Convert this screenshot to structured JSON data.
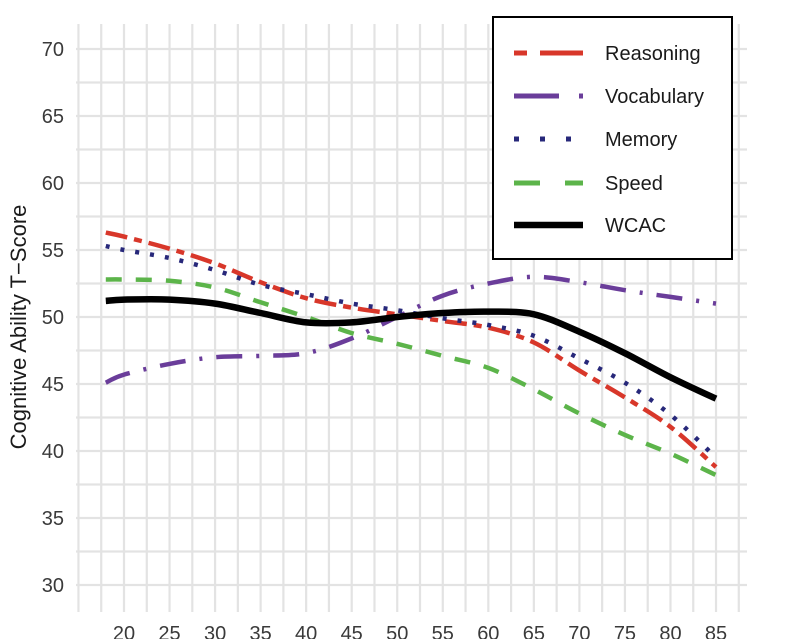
{
  "chart_data": {
    "type": "line",
    "title": "",
    "xlabel": "",
    "ylabel": "Cognitive Ability T−Score",
    "xlim": [
      15,
      87.5
    ],
    "ylim": [
      28,
      72
    ],
    "x_ticks": [
      20,
      25,
      30,
      35,
      40,
      45,
      50,
      55,
      60,
      65,
      70,
      75,
      80,
      85
    ],
    "x_tick_labels": [
      "20",
      "25",
      "30",
      "35",
      "40",
      "45",
      "50",
      "55",
      "60",
      "65",
      "70",
      "75",
      "80",
      "85"
    ],
    "y_ticks": [
      30,
      35,
      40,
      45,
      50,
      55,
      60,
      65,
      70
    ],
    "y_tick_labels": [
      "30",
      "35",
      "40",
      "45",
      "50",
      "55",
      "60",
      "65",
      "70"
    ],
    "grid": true,
    "legend_position": "top-right",
    "x": [
      18,
      20,
      25,
      30,
      35,
      40,
      45,
      50,
      55,
      60,
      65,
      70,
      75,
      80,
      85
    ],
    "series": [
      {
        "name": "Reasoning",
        "color": "#d8372a",
        "style": "longdash-short",
        "values": [
          56.3,
          56.0,
          55.1,
          54.0,
          52.6,
          51.4,
          50.7,
          50.2,
          49.7,
          49.2,
          48.1,
          46.0,
          44.0,
          41.8,
          38.8
        ]
      },
      {
        "name": "Vocabulary",
        "color": "#6a3d9a",
        "style": "longdash-dot",
        "values": [
          45.1,
          45.7,
          46.5,
          47.0,
          47.1,
          47.3,
          48.4,
          50.0,
          51.6,
          52.5,
          53.0,
          52.6,
          52.0,
          51.5,
          51.0
        ]
      },
      {
        "name": "Memory",
        "color": "#27287a",
        "style": "dotted",
        "values": [
          55.3,
          55.0,
          54.4,
          53.5,
          52.4,
          51.7,
          51.0,
          50.5,
          49.9,
          49.4,
          48.6,
          46.9,
          45.1,
          42.7,
          39.5
        ]
      },
      {
        "name": "Speed",
        "color": "#5cb44a",
        "style": "dashed",
        "values": [
          52.8,
          52.8,
          52.7,
          52.2,
          51.1,
          50.0,
          48.8,
          48.0,
          47.1,
          46.2,
          44.6,
          42.8,
          41.2,
          39.8,
          38.2
        ]
      },
      {
        "name": "WCAC",
        "color": "#000000",
        "style": "solid",
        "values": [
          51.2,
          51.3,
          51.3,
          51.0,
          50.3,
          49.6,
          49.6,
          50.0,
          50.3,
          50.4,
          50.2,
          48.9,
          47.3,
          45.5,
          43.9
        ]
      }
    ]
  }
}
